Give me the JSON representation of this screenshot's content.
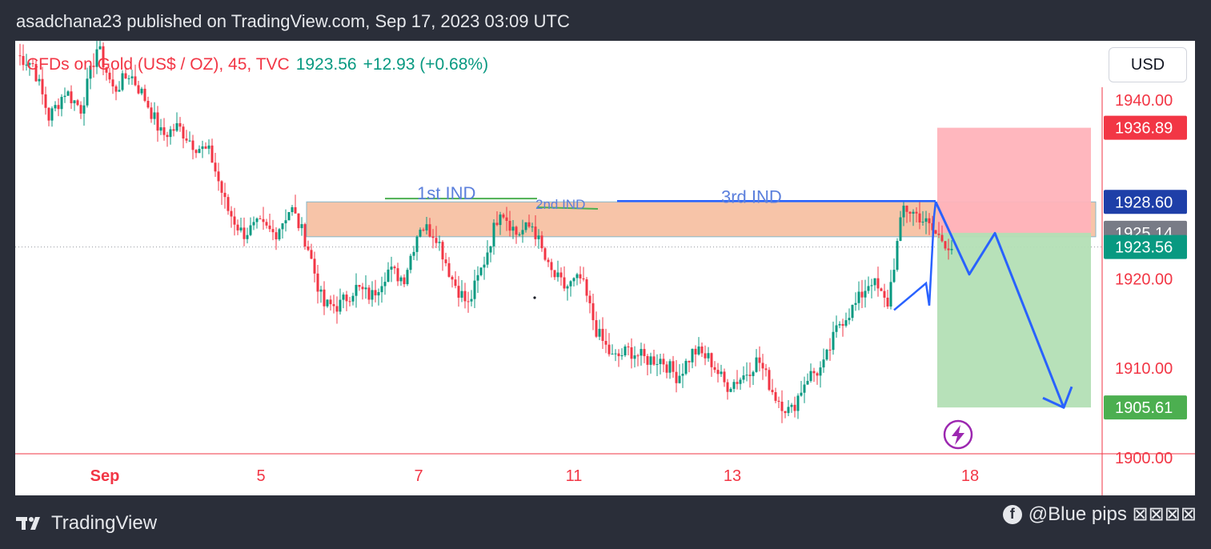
{
  "header": {
    "publish_line": "asadchana23 published on TradingView.com, Sep 17, 2023 03:09 UTC"
  },
  "symbol": {
    "name": "CFDs on Gold (US$ / OZ), 45, TVC",
    "price": "1923.56",
    "change": "+12.93 (+0.68%)"
  },
  "currency_button": "USD",
  "footer": {
    "brand": "TradingView",
    "credit": "@Blue pips ⊠⊠⊠⊠"
  },
  "colors": {
    "up": "#089981",
    "down": "#f23645",
    "axis_text": "#f23645",
    "zone_fill": "#f7c4a8",
    "stop_fill": "#ffb3ba",
    "target_fill": "#b3dfb5",
    "projection": "#2962ff",
    "annotation_text": "#5b7fdc"
  },
  "chart_data": {
    "type": "candlestick",
    "timeframe": "45",
    "ylim": [
      1899,
      1945
    ],
    "price_ticks": [
      "1940.00",
      "1920.00",
      "1910.00",
      "1900.00"
    ],
    "price_tick_values": [
      1940,
      1920,
      1910,
      1900
    ],
    "date_ticks": [
      "Sep",
      "5",
      "7",
      "11",
      "13",
      "18"
    ],
    "price_labels": [
      {
        "value": 1936.89,
        "text": "1936.89",
        "color": "#f23645"
      },
      {
        "value": 1928.6,
        "text": "1928.60",
        "color": "#1e3fa8"
      },
      {
        "value": 1925.14,
        "text": "1925.14",
        "color": "#787b86"
      },
      {
        "value": 1923.56,
        "text": "1923.56",
        "color": "#089981"
      },
      {
        "value": 1905.61,
        "text": "1905.61",
        "color": "#4caf50"
      }
    ],
    "last_price": 1923.56,
    "zone": {
      "top": 1928.6,
      "bottom": 1924.7
    },
    "position": {
      "entry": 1925.14,
      "stop": 1936.89,
      "target": 1905.61
    },
    "annotations": [
      {
        "text": "1st IND",
        "price": 1928.7
      },
      {
        "text": "2nd IND",
        "price": 1928.0
      },
      {
        "text": "3rd IND",
        "price": 1928.3
      }
    ],
    "resistance_level": 1928.6,
    "projection_path": [
      1928.6,
      1920.5,
      1925.1,
      1905.6
    ],
    "anchors": [
      1945,
      1944,
      1938,
      1941,
      1939,
      1946,
      1941,
      1943,
      1940,
      1936,
      1937,
      1935,
      1934,
      1928,
      1925,
      1926,
      1925,
      1928,
      1924,
      1917,
      1917,
      1919,
      1918,
      1921,
      1920,
      1926,
      1925,
      1920,
      1917,
      1922,
      1928,
      1925,
      1926,
      1921,
      1919,
      1920,
      1914,
      1911,
      1912,
      1911,
      1911,
      1909,
      1912,
      1911,
      1908,
      1909,
      1911,
      1907,
      1905,
      1909,
      1910,
      1915,
      1917,
      1920,
      1917,
      1928,
      1927,
      1925,
      1923.56
    ]
  }
}
